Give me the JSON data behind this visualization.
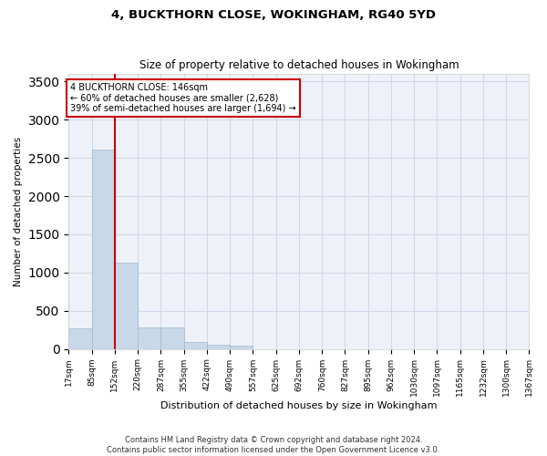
{
  "title": "4, BUCKTHORN CLOSE, WOKINGHAM, RG40 5YD",
  "subtitle": "Size of property relative to detached houses in Wokingham",
  "xlabel": "Distribution of detached houses by size in Wokingham",
  "ylabel": "Number of detached properties",
  "bar_color": "#c8d8e8",
  "bar_edge_color": "#a0b8d0",
  "grid_color": "#d0d8e8",
  "background_color": "#eef2f8",
  "vline_color": "#cc0000",
  "vline_x": 152,
  "annotation_text": "4 BUCKTHORN CLOSE: 146sqm\n← 60% of detached houses are smaller (2,628)\n39% of semi-detached houses are larger (1,694) →",
  "annotation_box_color": "#ffffff",
  "annotation_box_edge": "#cc0000",
  "footnote": "Contains HM Land Registry data © Crown copyright and database right 2024.\nContains public sector information licensed under the Open Government Licence v3.0.",
  "bins": [
    17,
    85,
    152,
    220,
    287,
    355,
    422,
    490,
    557,
    625,
    692,
    760,
    827,
    895,
    962,
    1030,
    1097,
    1165,
    1232,
    1300,
    1367
  ],
  "bar_heights": [
    270,
    2610,
    1130,
    280,
    280,
    90,
    55,
    40,
    0,
    0,
    0,
    0,
    0,
    0,
    0,
    0,
    0,
    0,
    0,
    0
  ],
  "ylim": [
    0,
    3600
  ],
  "yticks": [
    0,
    500,
    1000,
    1500,
    2000,
    2500,
    3000,
    3500
  ],
  "figsize": [
    6.0,
    5.0
  ],
  "dpi": 100
}
